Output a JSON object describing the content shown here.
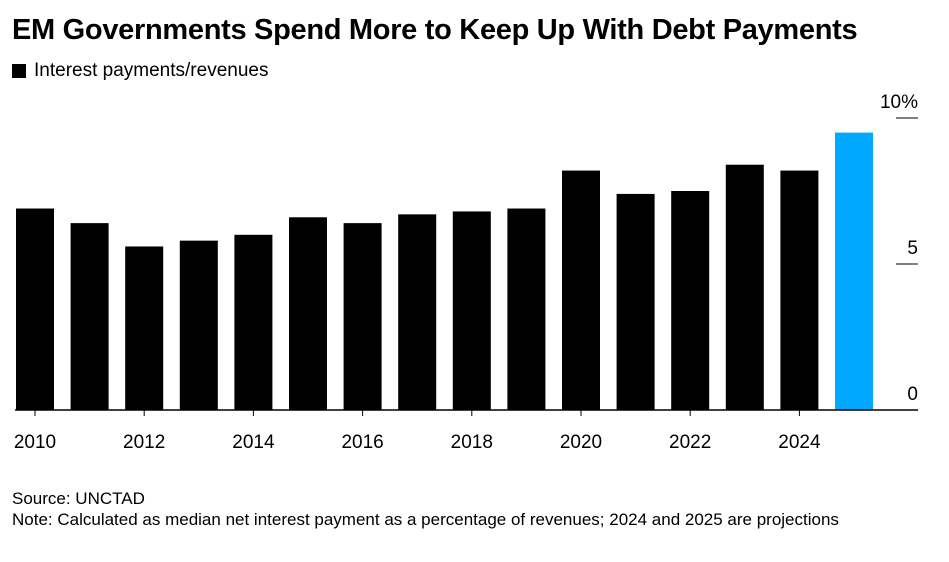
{
  "title": "EM Governments Spend More to Keep Up With Debt Payments",
  "legend": {
    "label": "Interest payments/revenues"
  },
  "source": "Source: UNCTAD",
  "note": "Note: Calculated as median net interest payment as a percentage of revenues; 2024 and 2025 are projections",
  "colors": {
    "bar": "#000000",
    "highlight": "#00a8ff"
  },
  "chart_data": {
    "type": "bar",
    "categories": [
      "2010",
      "2011",
      "2012",
      "2013",
      "2014",
      "2015",
      "2016",
      "2017",
      "2018",
      "2019",
      "2020",
      "2021",
      "2022",
      "2023",
      "2024",
      "2025"
    ],
    "series": [
      {
        "name": "Interest payments/revenues",
        "values": [
          6.9,
          6.4,
          5.6,
          5.8,
          6.0,
          6.6,
          6.4,
          6.7,
          6.8,
          6.9,
          8.2,
          7.4,
          7.5,
          8.4,
          8.2,
          9.5
        ]
      }
    ],
    "highlight_index": 15,
    "ylim": [
      0,
      10
    ],
    "yticks": [
      0,
      5,
      10
    ],
    "ytick_labels": [
      "0",
      "5",
      "10%"
    ],
    "xtick_labels": [
      "2010",
      "2012",
      "2014",
      "2016",
      "2018",
      "2020",
      "2022",
      "2024"
    ],
    "xlabel": "",
    "ylabel": "",
    "grid": false,
    "legend_position": "top-left"
  }
}
